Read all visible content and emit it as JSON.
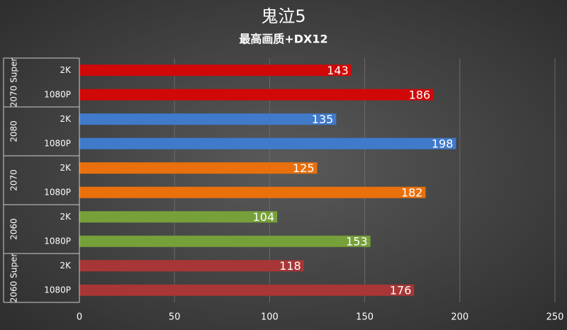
{
  "chart_data": {
    "type": "grouped-bar",
    "title": "鬼泣5",
    "subtitle": "最高画质+DX12",
    "groups": [
      {
        "name": "2070 Super",
        "color": "#d00808",
        "categories": [
          "2K",
          "1080P"
        ],
        "values": [
          143,
          186
        ]
      },
      {
        "name": "2080",
        "color": "#3f7acb",
        "categories": [
          "2K",
          "1080P"
        ],
        "values": [
          135,
          198
        ]
      },
      {
        "name": "2070",
        "color": "#ea700c",
        "categories": [
          "2K",
          "1080P"
        ],
        "values": [
          125,
          182
        ]
      },
      {
        "name": "2060",
        "color": "#76a03a",
        "categories": [
          "2K",
          "1080P"
        ],
        "values": [
          104,
          153
        ]
      },
      {
        "name": "2060 Super",
        "color": "#a83636",
        "categories": [
          "2K",
          "1080P"
        ],
        "values": [
          118,
          176
        ]
      }
    ],
    "xlim": [
      0,
      250
    ],
    "xticks": [
      0,
      50,
      100,
      150,
      200,
      250
    ],
    "grid": true
  }
}
